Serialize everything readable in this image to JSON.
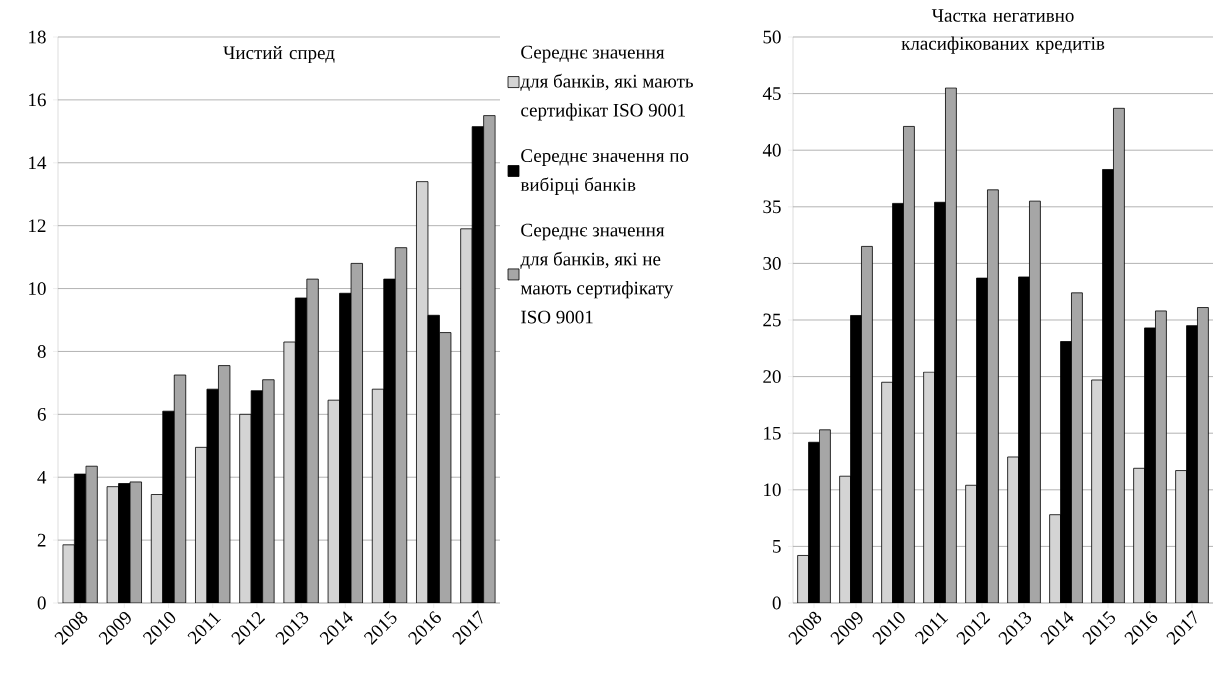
{
  "chart_data": [
    {
      "type": "bar",
      "title": "Чистий спред",
      "categories": [
        "2008",
        "2009",
        "2010",
        "2011",
        "2012",
        "2013",
        "2014",
        "2015",
        "2016",
        "2017"
      ],
      "series": [
        {
          "name": "Середнє значення для банків, які мають сертифікат ISO 9001",
          "color": "#d4d4d4",
          "values": [
            1.85,
            3.7,
            3.45,
            4.95,
            6.0,
            8.3,
            6.45,
            6.8,
            13.4,
            11.9
          ]
        },
        {
          "name": "Середнє значення по вибірці банків",
          "color": "#000000",
          "values": [
            4.1,
            3.8,
            6.1,
            6.8,
            6.75,
            9.7,
            9.85,
            10.3,
            9.15,
            15.15
          ]
        },
        {
          "name": "Середнє значення для банків, які не мають сертифікату ISO 9001",
          "color": "#a6a6a6",
          "values": [
            4.35,
            3.85,
            7.25,
            7.55,
            7.1,
            10.3,
            10.8,
            11.3,
            8.6,
            15.5
          ]
        }
      ],
      "ylim": [
        0,
        18
      ],
      "yticks": [
        0,
        2,
        4,
        6,
        8,
        10,
        12,
        14,
        16,
        18
      ],
      "grid": "y",
      "legend": "right"
    },
    {
      "type": "bar",
      "title": "Частка негативно класифікованих кредитів",
      "categories": [
        "2008",
        "2009",
        "2010",
        "2011",
        "2012",
        "2013",
        "2014",
        "2015",
        "2016",
        "2017"
      ],
      "series": [
        {
          "color": "#d4d4d4",
          "values": [
            4.2,
            11.2,
            19.5,
            20.4,
            10.4,
            12.9,
            7.8,
            19.7,
            11.9,
            11.7
          ]
        },
        {
          "color": "#000000",
          "values": [
            14.2,
            25.4,
            35.3,
            35.4,
            28.7,
            28.8,
            23.1,
            38.3,
            24.3,
            24.5
          ]
        },
        {
          "color": "#a6a6a6",
          "values": [
            15.3,
            31.5,
            42.1,
            45.5,
            36.5,
            35.5,
            27.4,
            43.7,
            25.8,
            26.1
          ]
        }
      ],
      "ylim": [
        0,
        50
      ],
      "yticks": [
        0,
        5,
        10,
        15,
        20,
        25,
        30,
        35,
        40,
        45,
        50
      ],
      "grid": "y"
    }
  ]
}
